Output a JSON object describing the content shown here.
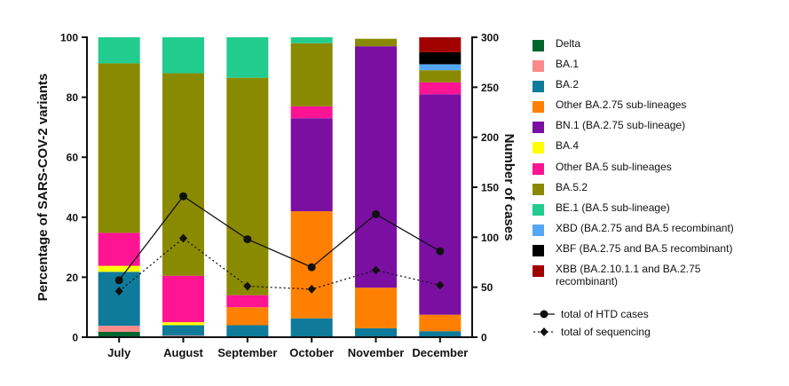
{
  "chart_data": {
    "type": "bar",
    "stacked": true,
    "categories": [
      "July",
      "August",
      "September",
      "October",
      "November",
      "December"
    ],
    "ylabel": "Percentage of SARS-COV-2 variants",
    "y2label": "Number of cases",
    "ylim": [
      0,
      100
    ],
    "y2lim": [
      0,
      300
    ],
    "yticks": [
      "0",
      "20",
      "40",
      "60",
      "80",
      "100"
    ],
    "y2ticks": [
      "0",
      "50",
      "100",
      "150",
      "200",
      "250",
      "300"
    ],
    "series": [
      {
        "name": "Delta",
        "color": "#00642d",
        "values": [
          1.8,
          0,
          0,
          0,
          0,
          0
        ]
      },
      {
        "name": "BA.1",
        "color": "#fb8a8a",
        "values": [
          2,
          0.5,
          0,
          0,
          0,
          0
        ]
      },
      {
        "name": "BA.2",
        "color": "#0f7a9a",
        "values": [
          18,
          3.5,
          4,
          6.3,
          3,
          2
        ]
      },
      {
        "name": "Other BA.2.75 sub-lineages",
        "color": "#ff8000",
        "values": [
          0,
          0,
          6,
          35.7,
          13.5,
          5.5
        ]
      },
      {
        "name": "BN.1 (BA.2.75 sub-lineage)",
        "color": "#7a0fa2",
        "values": [
          0,
          0,
          0,
          31,
          80.5,
          73.5
        ]
      },
      {
        "name": "BA.4",
        "color": "#ffff00",
        "values": [
          2,
          1,
          0,
          0,
          0,
          0
        ]
      },
      {
        "name": "Other BA.5 sub-lineages",
        "color": "#ff1493",
        "values": [
          11,
          15.5,
          4,
          4,
          0,
          4
        ]
      },
      {
        "name": "BA.5.2",
        "color": "#8a8a00",
        "values": [
          56.5,
          67.5,
          72.5,
          21,
          2.5,
          4
        ]
      },
      {
        "name": "BE.1 (BA.5 sub-lineage)",
        "color": "#22cc8e",
        "values": [
          8.7,
          12,
          13.5,
          2,
          0,
          0
        ]
      },
      {
        "name": "XBD (BA.2.75 and BA.5 recombinant)",
        "color": "#55a6f5",
        "values": [
          0,
          0,
          0,
          0,
          0,
          2
        ]
      },
      {
        "name": "XBF (BA.2.75 and BA.5 recombinant)",
        "color": "#000000",
        "values": [
          0,
          0,
          0,
          0,
          0,
          4
        ]
      },
      {
        "name": "XBB (BA.2.10.1.1 and BA.2.75 recombinant)",
        "color": "#a00000",
        "values": [
          0,
          0,
          0,
          0,
          0,
          5
        ]
      }
    ],
    "lines": [
      {
        "name": "total of HTD cases",
        "style": "solid",
        "marker": "circle",
        "values": [
          57,
          141,
          98,
          70,
          123,
          86
        ]
      },
      {
        "name": "total of sequencing",
        "style": "dotted",
        "marker": "diamond",
        "values": [
          46,
          99,
          51,
          48,
          67,
          52
        ]
      }
    ]
  }
}
